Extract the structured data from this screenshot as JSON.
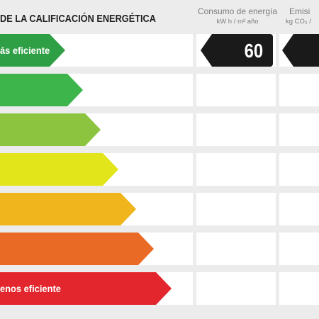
{
  "header": {
    "title": "DE LA CALIFICACIÓN ENERGÉTICA",
    "energy_col_title": "Consumo de energía",
    "energy_col_unit": "kW h / m² año",
    "emissions_col_title": "Emisi",
    "emissions_col_unit": "kg CO₂ /"
  },
  "scale": [
    {
      "label": "ás eficiente",
      "color": "#2f9f46"
    },
    {
      "label": "",
      "color": "#3db54a"
    },
    {
      "label": "",
      "color": "#8cc43f"
    },
    {
      "label": "",
      "color": "#e3e51b"
    },
    {
      "label": "",
      "color": "#f0b41c"
    },
    {
      "label": "",
      "color": "#e96a25"
    },
    {
      "label": "enos eficiente",
      "color": "#e3262d"
    }
  ],
  "rating": {
    "energy_value": "60",
    "emissions_value": ""
  }
}
